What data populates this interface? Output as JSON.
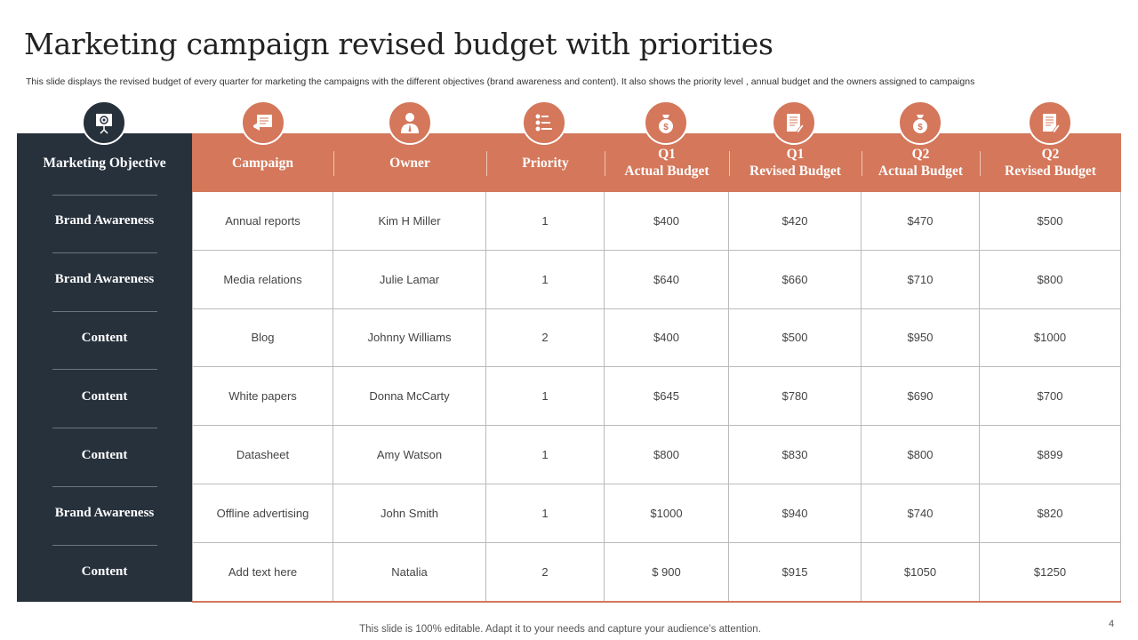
{
  "title": "Marketing campaign revised budget with priorities",
  "subtitle": "This slide displays the revised budget of every  quarter for marketing the campaigns with the different objectives (brand awareness and content). It also shows the priority level ,  annual budget and the owners assigned to campaigns",
  "colors": {
    "accent": "#d4775a",
    "dark": "#27313c"
  },
  "columns": [
    {
      "label": "Marketing Objective",
      "icon": "presentation-target-icon"
    },
    {
      "label": "Campaign",
      "icon": "campaign-megaphone-icon"
    },
    {
      "label": "Owner",
      "icon": "user-icon"
    },
    {
      "label": "Priority",
      "icon": "checklist-icon"
    },
    {
      "label": "Q1\nActual Budget",
      "icon": "money-bag-icon"
    },
    {
      "label": "Q1\nRevised Budget",
      "icon": "document-edit-icon"
    },
    {
      "label": "Q2\nActual Budget",
      "icon": "money-bag-icon"
    },
    {
      "label": "Q2\nRevised Budget",
      "icon": "document-edit-icon"
    }
  ],
  "rows": [
    [
      "Brand Awareness",
      "Annual reports",
      "Kim H Miller",
      "1",
      "$400",
      "$420",
      "$470",
      "$500"
    ],
    [
      "Brand Awareness",
      "Media relations",
      "Julie Lamar",
      "1",
      "$640",
      "$660",
      "$710",
      "$800"
    ],
    [
      "Content",
      "Blog",
      "Johnny Williams",
      "2",
      "$400",
      "$500",
      "$950",
      "$1000"
    ],
    [
      "Content",
      "White papers",
      "Donna McCarty",
      "1",
      "$645",
      "$780",
      "$690",
      "$700"
    ],
    [
      "Content",
      "Datasheet",
      "Amy Watson",
      "1",
      "$800",
      "$830",
      "$800",
      "$899"
    ],
    [
      "Brand Awareness",
      "Offline advertising",
      "John Smith",
      "1",
      "$1000",
      "$940",
      "$740",
      "$820"
    ],
    [
      "Content",
      "Add text here",
      "Natalia",
      "2",
      "$ 900",
      "$915",
      "$1050",
      "$1250"
    ]
  ],
  "footer": "This slide is 100% editable. Adapt it to your needs and capture your audience’s attention.",
  "page_number": "4"
}
